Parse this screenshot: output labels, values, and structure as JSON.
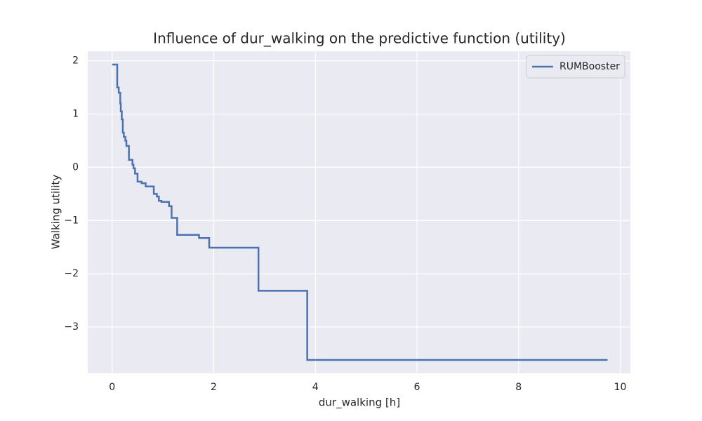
{
  "chart_data": {
    "type": "line",
    "drawstyle": "steps-post",
    "title": "Influence of dur_walking on the predictive function (utility)",
    "x_label": "dur_walking [h]",
    "y_label": "Walking utility",
    "grid": true,
    "legend_position": "upper right",
    "x": [
      0.0,
      0.1,
      0.13,
      0.16,
      0.17,
      0.19,
      0.21,
      0.23,
      0.26,
      0.28,
      0.33,
      0.4,
      0.42,
      0.45,
      0.5,
      0.58,
      0.66,
      0.82,
      0.88,
      0.92,
      0.97,
      1.12,
      1.17,
      1.28,
      1.71,
      1.91,
      2.88,
      3.84,
      9.75
    ],
    "series": [
      {
        "name": "RUMBooster",
        "color": "#4c72b0",
        "values": [
          1.93,
          1.5,
          1.4,
          1.2,
          1.05,
          0.9,
          0.65,
          0.57,
          0.5,
          0.4,
          0.14,
          0.05,
          -0.02,
          -0.12,
          -0.27,
          -0.3,
          -0.36,
          -0.5,
          -0.55,
          -0.63,
          -0.65,
          -0.73,
          -0.95,
          -1.27,
          -1.33,
          -1.51,
          -2.32,
          -3.62,
          -3.62
        ]
      }
    ],
    "xlim": [
      -0.48,
      10.2
    ],
    "xticks": [
      0,
      2,
      4,
      6,
      8,
      10
    ],
    "ylim": [
      -3.87,
      2.18
    ],
    "yticks": [
      {
        "value": -3,
        "label": "−3"
      },
      {
        "value": -2,
        "label": "−2"
      },
      {
        "value": -1,
        "label": "−1"
      },
      0,
      1,
      2
    ]
  }
}
